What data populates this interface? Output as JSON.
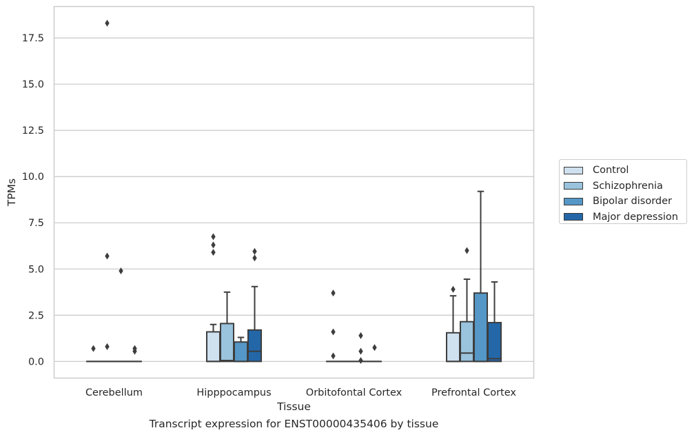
{
  "caption": "Transcript expression for ENST00000435406 by tissue",
  "chart_data": {
    "type": "boxplot",
    "xlabel": "Tissue",
    "ylabel": "TPMs",
    "ylim": [
      -0.9,
      19.2
    ],
    "yticks": [
      "0.0",
      "2.5",
      "5.0",
      "7.5",
      "10.0",
      "12.5",
      "15.0",
      "17.5"
    ],
    "grid": "horizontal",
    "legend_position": "right",
    "categories": [
      "Cerebellum",
      "Hipppocampus",
      "Orbitofontal Cortex",
      "Prefrontal Cortex"
    ],
    "series": [
      {
        "name": "Control",
        "color": "#cfe0ef",
        "boxes": [
          {
            "q1": 0,
            "median": 0,
            "q3": 0,
            "whisker_low": 0,
            "whisker_high": 0,
            "outliers": [
              0.7
            ]
          },
          {
            "q1": 0,
            "median": 0,
            "q3": 1.6,
            "whisker_low": 0,
            "whisker_high": 2.0,
            "outliers": [
              5.9,
              6.3,
              6.75
            ]
          },
          {
            "q1": 0,
            "median": 0,
            "q3": 0,
            "whisker_low": 0,
            "whisker_high": 0,
            "outliers": [
              0.3,
              1.6,
              3.7
            ]
          },
          {
            "q1": 0,
            "median": 0,
            "q3": 1.55,
            "whisker_low": 0,
            "whisker_high": 3.55,
            "outliers": [
              3.9
            ]
          }
        ]
      },
      {
        "name": "Schizophrenia",
        "color": "#9ac3dd",
        "boxes": [
          {
            "q1": 0,
            "median": 0,
            "q3": 0,
            "whisker_low": 0,
            "whisker_high": 0,
            "outliers": [
              0.8,
              5.7,
              18.3
            ]
          },
          {
            "q1": 0,
            "median": 0.05,
            "q3": 2.05,
            "whisker_low": 0,
            "whisker_high": 3.75,
            "outliers": []
          },
          {
            "q1": 0,
            "median": 0,
            "q3": 0,
            "whisker_low": 0,
            "whisker_high": 0,
            "outliers": []
          },
          {
            "q1": 0,
            "median": 0.45,
            "q3": 2.15,
            "whisker_low": 0,
            "whisker_high": 4.45,
            "outliers": [
              6.0
            ]
          }
        ]
      },
      {
        "name": "Bipolar disorder",
        "color": "#5597c6",
        "boxes": [
          {
            "q1": 0,
            "median": 0,
            "q3": 0,
            "whisker_low": 0,
            "whisker_high": 0,
            "outliers": [
              4.9
            ]
          },
          {
            "q1": 0,
            "median": 0,
            "q3": 1.05,
            "whisker_low": 0,
            "whisker_high": 1.3,
            "outliers": []
          },
          {
            "q1": 0,
            "median": 0,
            "q3": 0,
            "whisker_low": 0,
            "whisker_high": 0,
            "outliers": [
              0.05,
              0.55,
              1.4
            ]
          },
          {
            "q1": 0,
            "median": 0,
            "q3": 3.7,
            "whisker_low": 0,
            "whisker_high": 9.2,
            "outliers": []
          }
        ]
      },
      {
        "name": "Major depression",
        "color": "#2367a9",
        "boxes": [
          {
            "q1": 0,
            "median": 0,
            "q3": 0,
            "whisker_low": 0,
            "whisker_high": 0,
            "outliers": [
              0.55,
              0.7
            ]
          },
          {
            "q1": 0,
            "median": 0.55,
            "q3": 1.7,
            "whisker_low": 0,
            "whisker_high": 4.05,
            "outliers": [
              5.6,
              5.95
            ]
          },
          {
            "q1": 0,
            "median": 0,
            "q3": 0,
            "whisker_low": 0,
            "whisker_high": 0,
            "outliers": [
              0.75
            ]
          },
          {
            "q1": 0,
            "median": 0.15,
            "q3": 2.1,
            "whisker_low": 0,
            "whisker_high": 4.3,
            "outliers": []
          }
        ]
      }
    ]
  }
}
